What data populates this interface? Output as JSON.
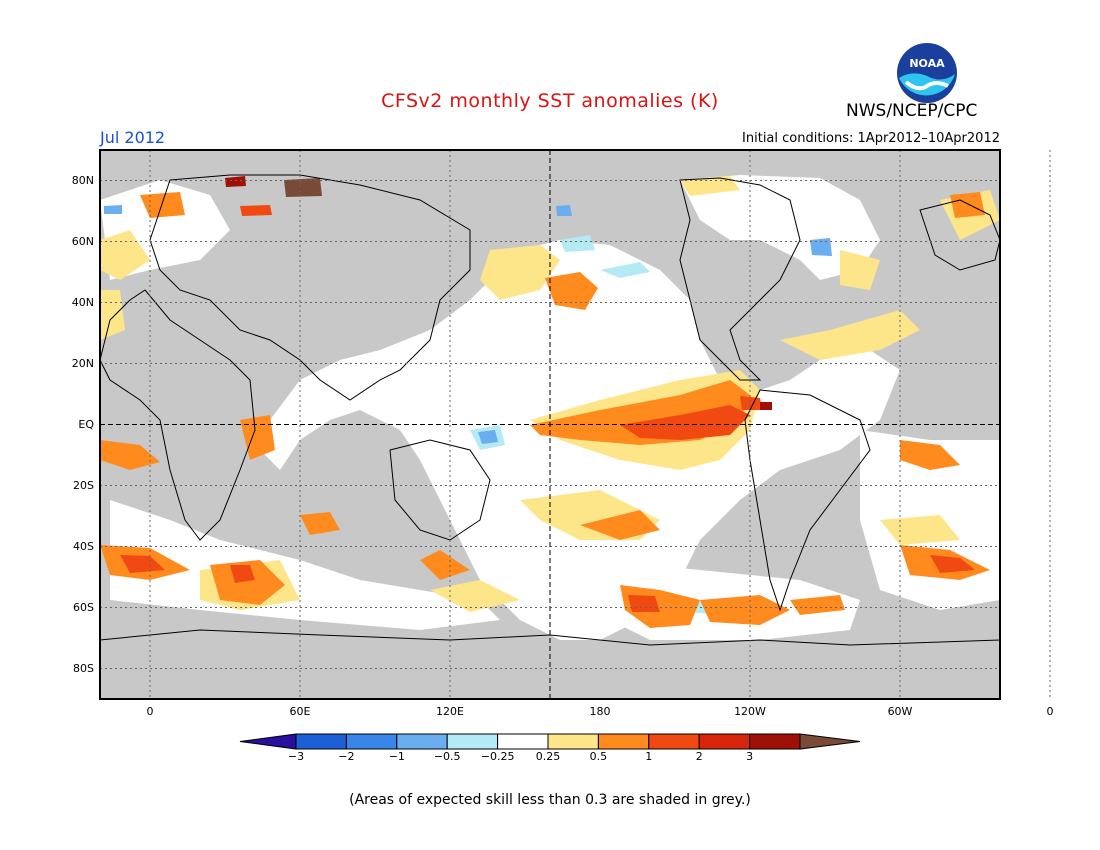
{
  "title": "CFSv2 monthly SST anomalies (K)",
  "period": "Jul 2012",
  "initial_conditions": "Initial conditions: 1Apr2012–10Apr2012",
  "agency": "NWS/NCEP/CPC",
  "logo_text": "NOAA",
  "footnote": "(Areas of expected skill less than 0.3 are shaded in grey.)",
  "map": {
    "projection": "equirectangular",
    "lon_range": [
      -20,
      340
    ],
    "lat_range": [
      -90,
      90
    ],
    "grid": true,
    "reference_lines": [
      "EQ",
      "180"
    ],
    "lat_ticks": [
      "80N",
      "60N",
      "40N",
      "20N",
      "EQ",
      "20S",
      "40S",
      "60S",
      "80S"
    ],
    "lon_ticks": [
      "0",
      "60E",
      "120E",
      "180",
      "120W",
      "60W",
      "0"
    ],
    "mask_color": "#c8c8c8"
  },
  "colorbar": {
    "labels": [
      "−3",
      "−2",
      "−1",
      "−0.5",
      "−0.25",
      "0.25",
      "0.5",
      "1",
      "2",
      "3"
    ],
    "colors": [
      "#2a0fa0",
      "#1f5fd6",
      "#3a86e8",
      "#6aaef0",
      "#b4eaf4",
      "#ffffff",
      "#fde68a",
      "#ff8a1e",
      "#f04a12",
      "#d8240a",
      "#a01006",
      "#7a4a38"
    ]
  }
}
